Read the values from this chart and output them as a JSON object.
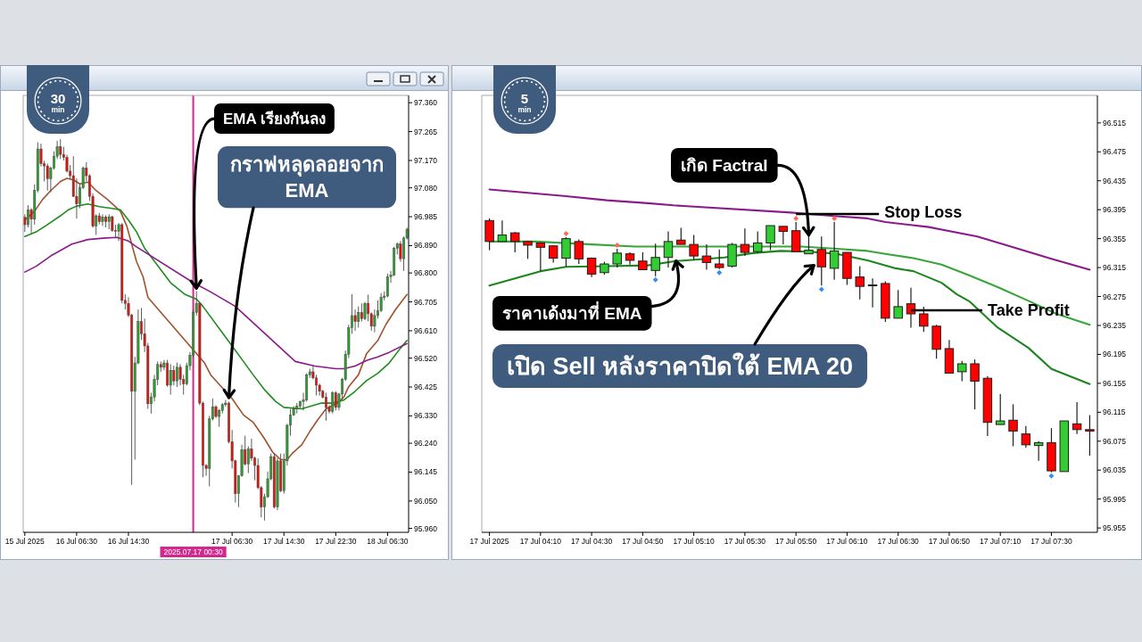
{
  "chart_data": [
    {
      "type": "candlestick",
      "x": [
        "2025-07-15T22:30",
        "2025-07-15T23:00",
        "2025-07-15T23:30",
        "2025-07-16T00:00",
        "2025-07-16T00:30",
        "2025-07-16T01:00",
        "2025-07-16T01:30",
        "2025-07-16T02:00",
        "2025-07-16T02:30",
        "2025-07-16T03:00",
        "2025-07-16T03:30",
        "2025-07-16T04:00",
        "2025-07-16T04:30",
        "2025-07-16T05:00",
        "2025-07-16T05:30",
        "2025-07-16T06:00",
        "2025-07-16T06:30",
        "2025-07-16T07:00",
        "2025-07-16T07:30",
        "2025-07-16T08:00",
        "2025-07-16T08:30",
        "2025-07-16T09:00",
        "2025-07-16T09:30",
        "2025-07-16T10:00",
        "2025-07-16T10:30",
        "2025-07-16T11:00",
        "2025-07-16T11:30",
        "2025-07-16T12:00",
        "2025-07-16T12:30",
        "2025-07-16T13:00",
        "2025-07-16T13:30",
        "2025-07-16T14:00",
        "2025-07-16T14:30",
        "2025-07-16T15:00",
        "2025-07-16T15:30",
        "2025-07-16T16:00",
        "2025-07-16T16:30",
        "2025-07-16T17:00",
        "2025-07-16T17:30",
        "2025-07-16T18:00",
        "2025-07-16T18:30",
        "2025-07-16T19:00",
        "2025-07-16T19:30",
        "2025-07-16T20:00",
        "2025-07-16T20:30",
        "2025-07-16T21:00",
        "2025-07-16T21:30",
        "2025-07-16T22:00",
        "2025-07-16T22:30",
        "2025-07-16T23:00",
        "2025-07-16T23:30",
        "2025-07-17T00:00",
        "2025-07-17T00:30",
        "2025-07-17T01:00",
        "2025-07-17T01:30",
        "2025-07-17T02:00",
        "2025-07-17T02:30",
        "2025-07-17T03:00",
        "2025-07-17T03:30",
        "2025-07-17T04:00",
        "2025-07-17T04:30",
        "2025-07-17T05:00",
        "2025-07-17T05:30",
        "2025-07-17T06:00",
        "2025-07-17T06:30",
        "2025-07-17T07:00",
        "2025-07-17T07:30",
        "2025-07-17T08:00",
        "2025-07-17T08:30",
        "2025-07-17T09:00",
        "2025-07-17T09:30",
        "2025-07-17T10:00",
        "2025-07-17T10:30",
        "2025-07-17T11:00",
        "2025-07-17T11:30",
        "2025-07-17T12:00",
        "2025-07-17T12:30",
        "2025-07-17T13:00",
        "2025-07-17T13:30",
        "2025-07-17T14:00",
        "2025-07-17T14:30",
        "2025-07-17T15:00",
        "2025-07-17T15:30",
        "2025-07-17T16:00",
        "2025-07-17T16:30",
        "2025-07-17T17:00",
        "2025-07-17T17:30",
        "2025-07-17T18:00",
        "2025-07-17T18:30",
        "2025-07-17T19:00",
        "2025-07-17T19:30",
        "2025-07-17T20:00",
        "2025-07-17T20:30",
        "2025-07-17T21:00",
        "2025-07-17T21:30",
        "2025-07-17T22:00",
        "2025-07-17T22:30",
        "2025-07-17T23:00",
        "2025-07-17T23:30",
        "2025-07-18T00:00",
        "2025-07-18T00:30",
        "2025-07-18T01:00",
        "2025-07-18T01:30",
        "2025-07-18T02:00",
        "2025-07-18T02:30",
        "2025-07-18T03:00",
        "2025-07-18T03:30",
        "2025-07-18T04:00",
        "2025-07-18T04:30",
        "2025-07-18T05:00",
        "2025-07-18T05:30",
        "2025-07-18T06:00",
        "2025-07-18T06:30",
        "2025-07-18T07:00",
        "2025-07-18T07:30",
        "2025-07-18T08:00",
        "2025-07-18T08:30",
        "2025-07-18T09:00",
        "2025-07-18T09:30"
      ],
      "ohlc": [
        [
          96.983,
          96.993,
          96.935,
          96.959
        ],
        [
          96.959,
          97.023,
          96.95,
          97.008
        ],
        [
          97.008,
          97.013,
          96.93,
          96.977
        ],
        [
          96.977,
          97.091,
          96.959,
          97.071
        ],
        [
          97.071,
          97.23,
          97.065,
          97.208
        ],
        [
          97.208,
          97.225,
          97.15,
          97.159
        ],
        [
          97.159,
          97.169,
          97.101,
          97.152
        ],
        [
          97.152,
          97.16,
          97.071,
          97.11
        ],
        [
          97.11,
          97.15,
          97.066,
          97.145
        ],
        [
          97.145,
          97.2,
          97.14,
          97.184
        ],
        [
          97.184,
          97.235,
          97.175,
          97.215
        ],
        [
          97.215,
          97.24,
          97.175,
          97.19
        ],
        [
          97.19,
          97.215,
          97.17,
          97.18
        ],
        [
          97.18,
          97.189,
          97.13,
          97.135
        ],
        [
          97.135,
          97.155,
          97.111,
          97.12
        ],
        [
          97.12,
          97.184,
          97.05,
          97.052
        ],
        [
          97.052,
          97.111,
          96.979,
          97.027
        ],
        [
          97.027,
          97.091,
          97.013,
          97.081
        ],
        [
          97.081,
          97.15,
          97.076,
          97.145
        ],
        [
          97.145,
          97.164,
          97.101,
          97.12
        ],
        [
          97.12,
          97.125,
          97.037,
          97.052
        ],
        [
          97.052,
          97.062,
          96.949,
          96.954
        ],
        [
          96.954,
          96.993,
          96.925,
          96.988
        ],
        [
          96.988,
          96.998,
          96.96,
          96.969
        ],
        [
          96.969,
          96.993,
          96.955,
          96.983
        ],
        [
          96.983,
          96.99,
          96.95,
          96.969
        ],
        [
          96.969,
          96.993,
          96.944,
          96.985
        ],
        [
          96.985,
          96.988,
          96.935,
          96.94
        ],
        [
          96.94,
          96.959,
          96.915,
          96.937
        ],
        [
          96.937,
          96.964,
          96.905,
          96.959
        ],
        [
          96.959,
          96.964,
          96.7,
          96.71
        ],
        [
          96.71,
          96.73,
          96.68,
          96.7
        ],
        [
          96.7,
          96.72,
          96.655,
          96.661
        ],
        [
          96.661,
          96.666,
          96.103,
          96.411
        ],
        [
          96.411,
          96.524,
          96.186,
          96.504
        ],
        [
          96.504,
          96.68,
          96.5,
          96.64
        ],
        [
          96.64,
          96.685,
          96.58,
          96.6
        ],
        [
          96.6,
          96.65,
          96.54,
          96.56
        ],
        [
          96.56,
          96.57,
          96.353,
          96.37
        ],
        [
          96.37,
          96.406,
          96.338,
          96.392
        ],
        [
          96.392,
          96.465,
          96.377,
          96.45
        ],
        [
          96.45,
          96.509,
          96.431,
          96.499
        ],
        [
          96.499,
          96.509,
          96.475,
          96.49
        ],
        [
          96.49,
          96.514,
          96.48,
          96.504
        ],
        [
          96.504,
          96.514,
          96.426,
          96.431
        ],
        [
          96.431,
          96.5,
          96.4,
          96.48
        ],
        [
          96.48,
          96.495,
          96.43,
          96.445
        ],
        [
          96.445,
          96.505,
          96.425,
          96.49
        ],
        [
          96.49,
          96.5,
          96.43,
          96.45
        ],
        [
          96.45,
          96.465,
          96.4,
          96.435
        ],
        [
          96.435,
          96.505,
          96.43,
          96.495
        ],
        [
          96.495,
          96.54,
          96.48,
          96.53
        ],
        [
          96.53,
          96.68,
          96.52,
          96.67
        ],
        [
          96.67,
          96.74,
          96.66,
          96.7
        ],
        [
          96.7,
          96.705,
          96.365,
          96.372
        ],
        [
          96.372,
          96.377,
          96.128,
          96.167
        ],
        [
          96.167,
          96.172,
          96.133,
          96.157
        ],
        [
          96.157,
          96.33,
          96.098,
          96.32
        ],
        [
          96.32,
          96.387,
          96.315,
          96.36
        ],
        [
          96.36,
          96.365,
          96.323,
          96.328
        ],
        [
          96.328,
          96.353,
          96.294,
          96.348
        ],
        [
          96.348,
          96.372,
          96.338,
          96.367
        ],
        [
          96.367,
          96.382,
          96.36,
          96.372
        ],
        [
          96.372,
          96.377,
          96.24,
          96.245
        ],
        [
          96.245,
          96.284,
          96.157,
          96.182
        ],
        [
          96.182,
          96.186,
          96.045,
          96.074
        ],
        [
          96.074,
          96.135,
          96.03,
          96.133
        ],
        [
          96.133,
          96.235,
          96.13,
          96.219
        ],
        [
          96.219,
          96.265,
          96.167,
          96.172
        ],
        [
          96.172,
          96.23,
          96.142,
          96.221
        ],
        [
          96.221,
          96.255,
          96.182,
          96.191
        ],
        [
          96.191,
          96.196,
          96.118,
          96.167
        ],
        [
          96.167,
          96.19,
          96.089,
          96.094
        ],
        [
          96.094,
          96.099,
          95.996,
          96.03
        ],
        [
          96.03,
          96.074,
          95.986,
          96.064
        ],
        [
          96.064,
          96.147,
          96.06,
          96.123
        ],
        [
          96.123,
          96.206,
          96.118,
          96.196
        ],
        [
          96.196,
          96.206,
          96.025,
          96.03
        ],
        [
          96.03,
          96.192,
          96.02,
          96.182
        ],
        [
          96.182,
          96.206,
          96.079,
          96.084
        ],
        [
          96.084,
          96.206,
          96.074,
          96.182
        ],
        [
          96.182,
          96.304,
          96.167,
          96.299
        ],
        [
          96.299,
          96.353,
          96.265,
          96.333
        ],
        [
          96.333,
          96.362,
          96.33,
          96.353
        ],
        [
          96.353,
          96.372,
          96.338,
          96.362
        ],
        [
          96.362,
          96.38,
          96.355,
          96.377
        ],
        [
          96.377,
          96.406,
          96.348,
          96.382
        ],
        [
          96.382,
          96.47,
          96.377,
          96.465
        ],
        [
          96.465,
          96.485,
          96.455,
          96.475
        ],
        [
          96.475,
          96.494,
          96.45,
          96.455
        ],
        [
          96.455,
          96.465,
          96.397,
          96.431
        ],
        [
          96.431,
          96.436,
          96.397,
          96.411
        ],
        [
          96.411,
          96.416,
          96.387,
          96.392
        ],
        [
          96.392,
          96.406,
          96.314,
          96.358
        ],
        [
          96.358,
          96.365,
          96.338,
          96.345
        ],
        [
          96.345,
          96.411,
          96.338,
          96.406
        ],
        [
          96.406,
          96.411,
          96.348,
          96.358
        ],
        [
          96.358,
          96.406,
          96.348,
          96.402
        ],
        [
          96.402,
          96.455,
          96.382,
          96.45
        ],
        [
          96.45,
          96.545,
          96.445,
          96.533
        ],
        [
          96.533,
          96.63,
          96.52,
          96.62
        ],
        [
          96.62,
          96.73,
          96.6,
          96.66
        ],
        [
          96.66,
          96.68,
          96.61,
          96.64
        ],
        [
          96.64,
          96.69,
          96.62,
          96.67
        ],
        [
          96.67,
          96.7,
          96.64,
          96.65
        ],
        [
          96.65,
          96.705,
          96.645,
          96.7
        ],
        [
          96.7,
          96.729,
          96.641,
          96.666
        ],
        [
          96.666,
          96.67,
          96.61,
          96.625
        ],
        [
          96.625,
          96.68,
          96.605,
          96.66
        ],
        [
          96.66,
          96.71,
          96.65,
          96.676
        ],
        [
          96.676,
          96.734,
          96.671,
          96.72
        ],
        [
          96.72,
          96.739,
          96.71,
          96.724
        ],
        [
          96.724,
          96.798,
          96.72,
          96.788
        ],
        [
          96.788,
          96.807,
          96.768,
          96.793
        ],
        [
          96.793,
          96.886,
          96.79,
          96.881
        ],
        [
          96.881,
          96.9,
          96.861,
          96.895
        ],
        [
          96.895,
          96.905,
          96.837,
          96.847
        ],
        [
          96.847,
          96.92,
          96.807,
          96.915
        ],
        [
          96.915,
          96.949,
          96.91,
          96.944
        ]
      ],
      "colors": [
        "#e3120b",
        "#2e9e2e",
        "#e3120b",
        "#2e9e2e",
        "#2e9e2e",
        "#e3120b",
        "#e3120b",
        "#e3120b",
        "#2e9e2e",
        "#2e9e2e",
        "#2e9e2e",
        "#e3120b",
        "#e3120b",
        "#e3120b",
        "#e3120b",
        "#e3120b",
        "#e3120b",
        "#2e9e2e",
        "#2e9e2e",
        "#e3120b",
        "#e3120b",
        "#e3120b",
        "#2e9e2e",
        "#e3120b",
        "#2e9e2e",
        "#e3120b",
        "#2e9e2e",
        "#e3120b",
        "#e3120b",
        "#2e9e2e",
        "#e3120b",
        "#e3120b",
        "#e3120b",
        "#e3120b",
        "#2e9e2e",
        "#2e9e2e",
        "#e3120b",
        "#e3120b",
        "#e3120b",
        "#2e9e2e",
        "#2e9e2e",
        "#2e9e2e",
        "#e3120b",
        "#2e9e2e",
        "#e3120b",
        "#2e9e2e",
        "#e3120b",
        "#2e9e2e",
        "#e3120b",
        "#e3120b",
        "#2e9e2e",
        "#2e9e2e",
        "#2e9e2e",
        "#2e9e2e",
        "#e3120b",
        "#e3120b",
        "#e3120b",
        "#2e9e2e",
        "#2e9e2e",
        "#e3120b",
        "#2e9e2e",
        "#2e9e2e",
        "#2e9e2e",
        "#e3120b",
        "#e3120b",
        "#e3120b",
        "#2e9e2e",
        "#2e9e2e",
        "#e3120b",
        "#2e9e2e",
        "#e3120b",
        "#e3120b",
        "#e3120b",
        "#e3120b",
        "#2e9e2e",
        "#2e9e2e",
        "#2e9e2e",
        "#e3120b",
        "#2e9e2e",
        "#e3120b",
        "#2e9e2e",
        "#2e9e2e",
        "#2e9e2e",
        "#2e9e2e",
        "#2e9e2e",
        "#2e9e2e",
        "#2e9e2e",
        "#2e9e2e",
        "#2e9e2e",
        "#e3120b",
        "#e3120b",
        "#e3120b",
        "#e3120b",
        "#e3120b",
        "#e3120b",
        "#2e9e2e",
        "#e3120b",
        "#2e9e2e",
        "#2e9e2e",
        "#2e9e2e",
        "#2e9e2e",
        "#2e9e2e",
        "#e3120b",
        "#2e9e2e",
        "#e3120b",
        "#2e9e2e",
        "#e3120b",
        "#e3120b",
        "#2e9e2e",
        "#2e9e2e",
        "#2e9e2e",
        "#2e9e2e",
        "#2e9e2e",
        "#2e9e2e",
        "#2e9e2e",
        "#2e9e2e",
        "#e3120b",
        "#2e9e2e",
        "#2e9e2e"
      ],
      "color": "#4a4a4a",
      "series": [
        {
          "type": "line",
          "color": "#a0522d",
          "x": [
            "2025-07-15T22:30",
            "2025-07-16T00:00",
            "2025-07-16T01:15",
            "2025-07-16T02:30",
            "2025-07-16T04:00",
            "2025-07-16T05:00",
            "2025-07-16T06:00",
            "2025-07-16T07:00",
            "2025-07-16T08:15",
            "2025-07-16T09:30",
            "2025-07-16T11:15",
            "2025-07-16T13:15",
            "2025-07-16T14:15",
            "2025-07-16T15:00",
            "2025-07-16T15:45",
            "2025-07-16T16:45",
            "2025-07-16T17:30",
            "2025-07-17T02:15",
            "2025-07-17T03:15",
            "2025-07-17T05:15",
            "2025-07-17T06:30",
            "2025-07-17T08:15",
            "2025-07-17T09:45",
            "2025-07-17T11:30",
            "2025-07-17T12:45",
            "2025-07-17T14:00",
            "2025-07-17T15:00",
            "2025-07-17T15:45",
            "2025-07-17T17:15",
            "2025-07-17T18:30",
            "2025-07-17T19:45",
            "2025-07-17T21:00",
            "2025-07-17T22:45",
            "2025-07-17T23:45",
            "2025-07-18T00:30",
            "2025-07-18T02:00",
            "2025-07-18T03:15",
            "2025-07-18T05:00",
            "2025-07-18T06:15",
            "2025-07-18T07:45",
            "2025-07-18T09:30"
          ],
          "values": [
            96.974,
            97.003,
            97.042,
            97.071,
            97.101,
            97.111,
            97.106,
            97.093,
            97.099,
            97.071,
            97.042,
            97.003,
            96.954,
            96.895,
            96.837,
            96.788,
            96.72,
            96.504,
            96.463,
            96.416,
            96.387,
            96.333,
            96.309,
            96.255,
            96.211,
            96.186,
            96.186,
            96.206,
            96.235,
            96.279,
            96.318,
            96.353,
            96.372,
            96.392,
            96.426,
            96.465,
            96.534,
            96.578,
            96.631,
            96.68,
            96.729
          ]
        },
        {
          "type": "line",
          "color": "#1e8c1e",
          "x": [
            "2025-07-15T22:30",
            "2025-07-16T00:15",
            "2025-07-16T02:00",
            "2025-07-16T04:00",
            "2025-07-16T05:15",
            "2025-07-16T06:30",
            "2025-07-16T08:15",
            "2025-07-16T10:00",
            "2025-07-16T11:45",
            "2025-07-16T13:15",
            "2025-07-16T14:30",
            "2025-07-16T15:45",
            "2025-07-16T17:00",
            "2025-07-16T21:00",
            "2025-07-16T23:15",
            "2025-07-17T01:00",
            "2025-07-17T02:00",
            "2025-07-17T08:15",
            "2025-07-17T09:45",
            "2025-07-17T11:30",
            "2025-07-17T13:15",
            "2025-07-17T14:30",
            "2025-07-17T17:15",
            "2025-07-17T20:15",
            "2025-07-17T22:00",
            "2025-07-17T23:45",
            "2025-07-18T01:30",
            "2025-07-18T03:15",
            "2025-07-18T05:00",
            "2025-07-18T06:45",
            "2025-07-18T08:30",
            "2025-07-18T09:30"
          ],
          "values": [
            96.92,
            96.935,
            96.959,
            96.988,
            97.008,
            97.02,
            97.027,
            97.018,
            97.013,
            97.008,
            96.974,
            96.935,
            96.881,
            96.768,
            96.729,
            96.714,
            96.69,
            96.509,
            96.465,
            96.416,
            96.377,
            96.358,
            96.353,
            96.372,
            96.372,
            96.382,
            96.411,
            96.446,
            96.47,
            96.504,
            96.553,
            96.578
          ]
        },
        {
          "type": "line",
          "color": "#8b1a8b",
          "x": [
            "2025-07-15T22:30",
            "2025-07-16T00:15",
            "2025-07-16T02:30",
            "2025-07-16T05:45",
            "2025-07-16T08:15",
            "2025-07-16T11:00",
            "2025-07-16T12:45",
            "2025-07-16T14:30",
            "2025-07-16T15:45",
            "2025-07-17T00:30",
            "2025-07-17T03:00",
            "2025-07-17T05:15",
            "2025-07-17T07:00",
            "2025-07-17T16:15",
            "2025-07-17T19:15",
            "2025-07-17T22:30",
            "2025-07-17T23:45",
            "2025-07-18T01:30",
            "2025-07-18T03:15",
            "2025-07-18T05:00",
            "2025-07-18T06:45",
            "2025-07-18T09:30"
          ],
          "values": [
            96.803,
            96.822,
            96.856,
            96.895,
            96.91,
            96.915,
            96.917,
            96.905,
            96.886,
            96.768,
            96.74,
            96.712,
            96.69,
            96.509,
            96.494,
            96.485,
            96.485,
            96.494,
            96.512,
            96.524,
            96.539,
            96.568
          ]
        }
      ],
      "xlim": [
        "2025-07-15T22:15",
        "2025-07-18T09:45"
      ],
      "ylim": [
        95.947,
        97.384
      ],
      "xticks": [
        {
          "value": "2025-07-15T22:30",
          "label": "15 Jul 2025"
        },
        {
          "value": "2025-07-16T06:30",
          "label": "16 Jul 06:30"
        },
        {
          "value": "2025-07-16T14:30",
          "label": "16 Jul 14:30"
        },
        {
          "value": "2025-07-17T06:30",
          "label": "17 Jul 06:30"
        },
        {
          "value": "2025-07-17T14:30",
          "label": "17 Jul 14:30"
        },
        {
          "value": "2025-07-17T22:30",
          "label": "17 Jul 22:30"
        },
        {
          "value": "2025-07-18T06:30",
          "label": "18 Jul 06:30"
        }
      ],
      "yticks": [
        {
          "value": 97.36,
          "label": "97.360"
        },
        97.265,
        {
          "value": 97.17,
          "label": "97.170"
        },
        {
          "value": 97.08,
          "label": "97.080"
        },
        96.985,
        {
          "value": 96.89,
          "label": "96.890"
        },
        {
          "value": 96.8,
          "label": "96.800"
        },
        96.705,
        {
          "value": 96.61,
          "label": "96.610"
        },
        {
          "value": 96.52,
          "label": "96.520"
        },
        96.425,
        {
          "value": 96.33,
          "label": "96.330"
        },
        {
          "value": 96.24,
          "label": "96.240"
        },
        96.145,
        {
          "value": 96.05,
          "label": "96.050"
        },
        {
          "value": 95.96,
          "label": "95.960"
        }
      ],
      "ref_lines": [
        {
          "axis": "x",
          "value": "2025-07-17T00:30",
          "label": "2025.07.17 00:30",
          "color": "#d3268e"
        }
      ],
      "annotations": [
        "30 min",
        {
          "text": "EMA เรียงกันลง",
          "x": "2025-07-17T01:00",
          "y": 96.75
        },
        {
          "text": "กราฟหลุดลอยจาก EMA",
          "x": "2025-07-17T06:00",
          "y": 96.39
        }
      ]
    },
    {
      "type": "candlestick",
      "x": [
        "2025-07-17T03:50",
        "2025-07-17T03:55",
        "2025-07-17T04:00",
        "2025-07-17T04:05",
        "2025-07-17T04:10",
        "2025-07-17T04:15",
        "2025-07-17T04:20",
        "2025-07-17T04:25",
        "2025-07-17T04:30",
        "2025-07-17T04:35",
        "2025-07-17T04:40",
        "2025-07-17T04:45",
        "2025-07-17T04:50",
        "2025-07-17T04:55",
        "2025-07-17T05:00",
        "2025-07-17T05:05",
        "2025-07-17T05:10",
        "2025-07-17T05:15",
        "2025-07-17T05:20",
        "2025-07-17T05:25",
        "2025-07-17T05:30",
        "2025-07-17T05:35",
        "2025-07-17T05:40",
        "2025-07-17T05:45",
        "2025-07-17T05:50",
        "2025-07-17T05:55",
        "2025-07-17T06:00",
        "2025-07-17T06:05",
        "2025-07-17T06:10",
        "2025-07-17T06:15",
        "2025-07-17T06:20",
        "2025-07-17T06:25",
        "2025-07-17T06:30",
        "2025-07-17T06:35",
        "2025-07-17T06:40",
        "2025-07-17T06:45",
        "2025-07-17T06:50",
        "2025-07-17T06:55",
        "2025-07-17T07:00",
        "2025-07-17T07:05",
        "2025-07-17T07:10",
        "2025-07-17T07:15",
        "2025-07-17T07:20",
        "2025-07-17T07:25",
        "2025-07-17T07:30",
        "2025-07-17T07:35",
        "2025-07-17T07:40",
        "2025-07-17T07:45"
      ],
      "ohlc": [
        [
          96.38,
          96.383,
          96.339,
          96.351
        ],
        [
          96.351,
          96.38,
          96.351,
          96.36
        ],
        [
          96.363,
          96.364,
          96.336,
          96.351
        ],
        [
          96.351,
          96.352,
          96.327,
          96.346
        ],
        [
          96.349,
          96.35,
          96.31,
          96.343
        ],
        [
          96.345,
          96.346,
          96.322,
          96.328
        ],
        [
          96.328,
          96.357,
          96.316,
          96.355
        ],
        [
          96.351,
          96.354,
          96.32,
          96.327
        ],
        [
          96.328,
          96.329,
          96.302,
          96.306
        ],
        [
          96.308,
          96.323,
          96.305,
          96.32
        ],
        [
          96.32,
          96.341,
          96.315,
          96.335
        ],
        [
          96.334,
          96.336,
          96.319,
          96.325
        ],
        [
          96.324,
          96.336,
          96.312,
          96.312
        ],
        [
          96.311,
          96.348,
          96.303,
          96.329
        ],
        [
          96.329,
          96.365,
          96.315,
          96.351
        ],
        [
          96.353,
          96.37,
          96.347,
          96.347
        ],
        [
          96.347,
          96.36,
          96.325,
          96.331
        ],
        [
          96.331,
          96.347,
          96.312,
          96.322
        ],
        [
          96.32,
          96.34,
          96.313,
          96.315
        ],
        [
          96.317,
          96.349,
          96.315,
          96.347
        ],
        [
          96.347,
          96.369,
          96.331,
          96.336
        ],
        [
          96.337,
          96.365,
          96.335,
          96.349
        ],
        [
          96.349,
          96.373,
          96.339,
          96.373
        ],
        [
          96.372,
          96.372,
          96.347,
          96.365
        ],
        [
          96.366,
          96.378,
          96.337,
          96.337
        ],
        [
          96.334,
          96.373,
          96.334,
          96.339
        ],
        [
          96.34,
          96.358,
          96.29,
          96.316
        ],
        [
          96.314,
          96.378,
          96.298,
          96.338
        ],
        [
          96.336,
          96.336,
          96.291,
          96.3
        ],
        [
          96.302,
          96.317,
          96.271,
          96.289
        ],
        [
          96.291,
          96.3,
          96.26,
          96.291
        ],
        [
          96.293,
          96.296,
          96.24,
          96.245
        ],
        [
          96.245,
          96.284,
          96.245,
          96.261
        ],
        [
          96.265,
          96.287,
          96.232,
          96.251
        ],
        [
          96.251,
          96.261,
          96.226,
          96.234
        ],
        [
          96.234,
          96.236,
          96.189,
          96.202
        ],
        [
          96.203,
          96.215,
          96.169,
          96.169
        ],
        [
          96.171,
          96.186,
          96.158,
          96.182
        ],
        [
          96.182,
          96.188,
          96.119,
          96.158
        ],
        [
          96.162,
          96.165,
          96.082,
          96.101
        ],
        [
          96.098,
          96.14,
          96.098,
          96.103
        ],
        [
          96.104,
          96.126,
          96.068,
          96.089
        ],
        [
          96.085,
          96.096,
          96.066,
          96.07
        ],
        [
          96.069,
          96.075,
          96.048,
          96.073
        ],
        [
          96.073,
          96.093,
          96.032,
          96.034
        ],
        [
          96.033,
          96.103,
          96.033,
          96.103
        ],
        [
          96.099,
          96.129,
          96.085,
          96.091
        ],
        [
          96.091,
          96.111,
          96.055,
          96.089
        ]
      ],
      "colors": [
        "#ff0000",
        "#32cd32",
        "#ff0000",
        "#ff0000",
        "#ff0000",
        "#ff0000",
        "#32cd32",
        "#ff0000",
        "#ff0000",
        "#32cd32",
        "#32cd32",
        "#ff0000",
        "#ff0000",
        "#32cd32",
        "#32cd32",
        "#ff0000",
        "#ff0000",
        "#ff0000",
        "#ff0000",
        "#32cd32",
        "#ff0000",
        "#32cd32",
        "#32cd32",
        "#ff0000",
        "#ff0000",
        "#32cd32",
        "#ff0000",
        "#32cd32",
        "#ff0000",
        "#ff0000",
        "#1f1f1f",
        "#ff0000",
        "#32cd32",
        "#ff0000",
        "#ff0000",
        "#ff0000",
        "#ff0000",
        "#32cd32",
        "#ff0000",
        "#ff0000",
        "#32cd32",
        "#ff0000",
        "#ff0000",
        "#32cd32",
        "#ff0000",
        "#32cd32",
        "#ff0000",
        "#ff0000"
      ],
      "color": "#1f1f1f",
      "series": [
        {
          "type": "line",
          "color": "#8b1a8b",
          "x": [
            "2025-07-17T03:50",
            "2025-07-17T04:03",
            "2025-07-17T04:19",
            "2025-07-17T04:36",
            "2025-07-17T04:52",
            "2025-07-17T05:02",
            "2025-07-17T05:48",
            "2025-07-17T05:55",
            "2025-07-17T06:06",
            "2025-07-17T06:18",
            "2025-07-17T06:25",
            "2025-07-17T06:42",
            "2025-07-17T07:01",
            "2025-07-17T07:15",
            "2025-07-17T07:30",
            "2025-07-17T07:45"
          ],
          "values": [
            96.423,
            96.419,
            96.414,
            96.408,
            96.404,
            96.401,
            96.391,
            96.389,
            96.386,
            96.383,
            96.378,
            96.371,
            96.358,
            96.343,
            96.327,
            96.312
          ]
        },
        {
          "type": "line",
          "color": "#3aa53a",
          "x": [
            "2025-07-17T03:50",
            "2025-07-17T04:08",
            "2025-07-17T04:30",
            "2025-07-17T04:47",
            "2025-07-17T05:09",
            "2025-07-17T05:52",
            "2025-07-17T06:06",
            "2025-07-17T06:18",
            "2025-07-17T06:25",
            "2025-07-17T06:36",
            "2025-07-17T06:47",
            "2025-07-17T06:58",
            "2025-07-17T07:09",
            "2025-07-17T07:21",
            "2025-07-17T07:32",
            "2025-07-17T07:45"
          ],
          "values": [
            96.351,
            96.351,
            96.347,
            96.344,
            96.344,
            96.344,
            96.341,
            96.338,
            96.334,
            96.328,
            96.319,
            96.304,
            96.288,
            96.269,
            96.251,
            96.236
          ]
        },
        {
          "type": "line",
          "color": "#1c861c",
          "x": [
            "2025-07-17T03:50",
            "2025-07-17T04:10",
            "2025-07-17T04:20",
            "2025-07-17T04:36",
            "2025-07-17T04:52",
            "2025-07-17T05:03",
            "2025-07-17T05:22",
            "2025-07-17T05:33",
            "2025-07-17T05:44",
            "2025-07-17T05:55",
            "2025-07-17T06:06",
            "2025-07-17T06:18",
            "2025-07-17T06:29",
            "2025-07-17T06:36",
            "2025-07-17T06:47",
            "2025-07-17T06:53",
            "2025-07-17T06:58",
            "2025-07-17T07:09",
            "2025-07-17T07:21",
            "2025-07-17T07:30",
            "2025-07-17T07:45"
          ],
          "values": [
            96.29,
            96.31,
            96.316,
            96.317,
            96.318,
            96.324,
            96.329,
            96.335,
            96.338,
            96.337,
            96.334,
            96.325,
            96.314,
            96.31,
            96.294,
            96.278,
            96.268,
            96.232,
            96.204,
            96.175,
            96.154
          ]
        },
        {
          "type": "scatter",
          "color": "#ff6b5a",
          "marker": "diamond",
          "x": [
            "2025-07-17T04:20",
            "2025-07-17T04:40",
            "2025-07-17T05:50",
            "2025-07-17T06:05"
          ],
          "values": [
            96.362,
            96.346,
            96.383,
            96.383
          ]
        },
        {
          "type": "scatter",
          "color": "#3b8ee8",
          "marker": "diamond",
          "x": [
            "2025-07-17T04:55",
            "2025-07-17T05:20",
            "2025-07-17T06:00",
            "2025-07-17T07:30"
          ],
          "values": [
            96.298,
            96.308,
            96.285,
            96.027
          ]
        }
      ],
      "xlim": [
        "2025-07-17T03:47",
        "2025-07-17T07:48"
      ],
      "ylim": [
        95.949,
        96.553
      ],
      "xticks": [
        {
          "value": "2025-07-17T03:50",
          "label": "17 Jul 2025"
        },
        {
          "value": "2025-07-17T04:10",
          "label": "17 Jul 04:10"
        },
        {
          "value": "2025-07-17T04:30",
          "label": "17 Jul 04:30"
        },
        {
          "value": "2025-07-17T04:50",
          "label": "17 Jul 04:50"
        },
        {
          "value": "2025-07-17T05:10",
          "label": "17 Jul 05:10"
        },
        {
          "value": "2025-07-17T05:30",
          "label": "17 Jul 05:30"
        },
        {
          "value": "2025-07-17T05:50",
          "label": "17 Jul 05:50"
        },
        {
          "value": "2025-07-17T06:10",
          "label": "17 Jul 06:10"
        },
        {
          "value": "2025-07-17T06:30",
          "label": "17 Jul 06:30"
        },
        {
          "value": "2025-07-17T06:50",
          "label": "17 Jul 06:50"
        },
        {
          "value": "2025-07-17T07:10",
          "label": "17 Jul 07:10"
        },
        {
          "value": "2025-07-17T07:30",
          "label": "17 Jul 07:30"
        }
      ],
      "yticks": [
        96.515,
        96.475,
        96.435,
        96.395,
        96.355,
        96.315,
        96.275,
        96.235,
        96.195,
        96.155,
        96.115,
        96.075,
        96.035,
        95.995,
        95.955
      ],
      "annotations": [
        "5 min",
        {
          "text": "เกิด Factral",
          "x": "2025-07-17T05:55",
          "y": 96.36
        },
        {
          "text": "Stop Loss",
          "x": "2025-07-17T05:50",
          "y": 96.389
        },
        {
          "text": "ราคาเด้งมาที่ EMA",
          "x": "2025-07-17T05:03",
          "y": 96.324
        },
        {
          "text": "เปิด Sell หลังราคาปิดใต้ EMA 20",
          "x": "2025-07-17T05:57",
          "y": 96.318
        },
        {
          "text": "Take Profit",
          "x": "2025-07-17T06:35",
          "y": 96.256
        }
      ]
    }
  ]
}
